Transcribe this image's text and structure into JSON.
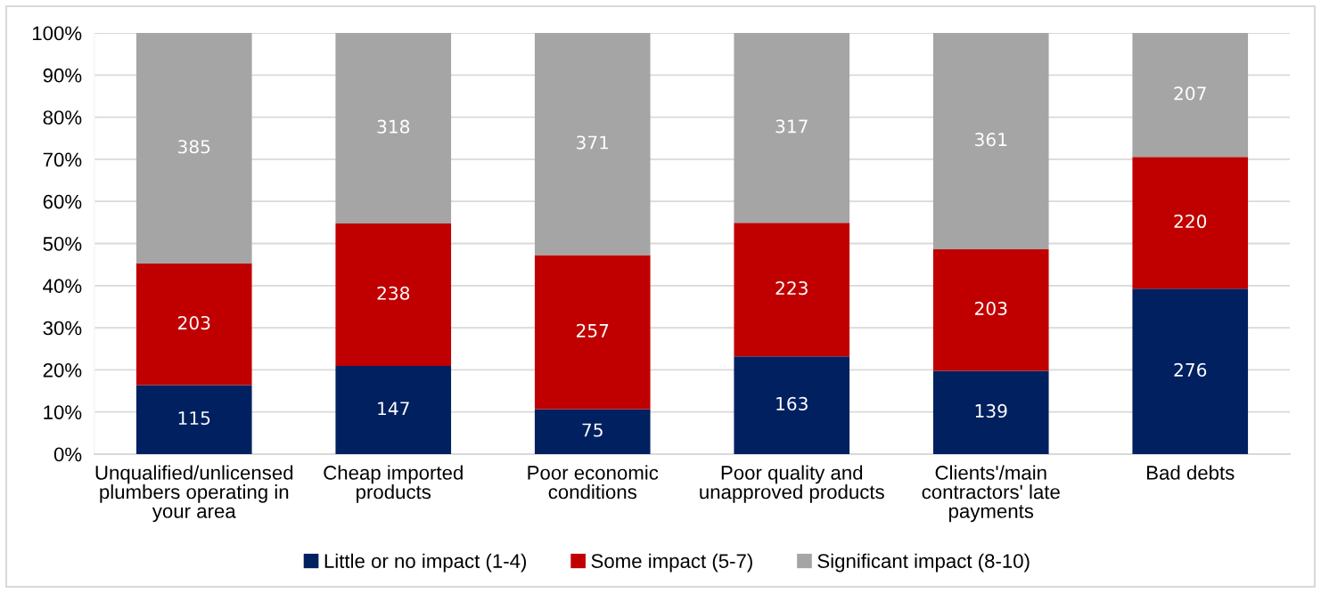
{
  "chart_data": {
    "type": "bar",
    "stacked": true,
    "categories": [
      "Unqualified/unlicensed\nplumbers operating in\nyour area",
      "Cheap imported\nproducts",
      "Poor economic\nconditions",
      "Poor quality and\nunapproved products",
      "Clients'/main\ncontractors' late\npayments",
      "Bad debts"
    ],
    "series": [
      {
        "name": "Little or no impact (1-4)",
        "color": "#002060",
        "axis": "y2",
        "values": [
          115,
          147,
          75,
          163,
          139,
          276
        ]
      },
      {
        "name": "Some impact (5-7)",
        "color": "#c00000",
        "axis": "y2",
        "values": [
          203,
          238,
          257,
          223,
          203,
          220
        ]
      },
      {
        "name": "Significant impact (8-10)",
        "color": "#a5a5a5",
        "axis": "y2",
        "values": [
          385,
          318,
          371,
          317,
          361,
          207
        ]
      }
    ],
    "data_labels": true,
    "ylim": [
      0,
      100
    ],
    "yticks": [
      {
        "value": 0,
        "label": "0%"
      },
      {
        "value": 10,
        "label": "10%"
      },
      {
        "value": 20,
        "label": "20%"
      },
      {
        "value": 30,
        "label": "30%"
      },
      {
        "value": 40,
        "label": "40%"
      },
      {
        "value": 50,
        "label": "50%"
      },
      {
        "value": 60,
        "label": "60%"
      },
      {
        "value": 70,
        "label": "70%"
      },
      {
        "value": 80,
        "label": "80%"
      },
      {
        "value": 90,
        "label": "90%"
      },
      {
        "value": 100,
        "label": "100%"
      }
    ],
    "y2lim": [
      0,
      703
    ],
    "grid": "y",
    "legend": "bottom"
  }
}
